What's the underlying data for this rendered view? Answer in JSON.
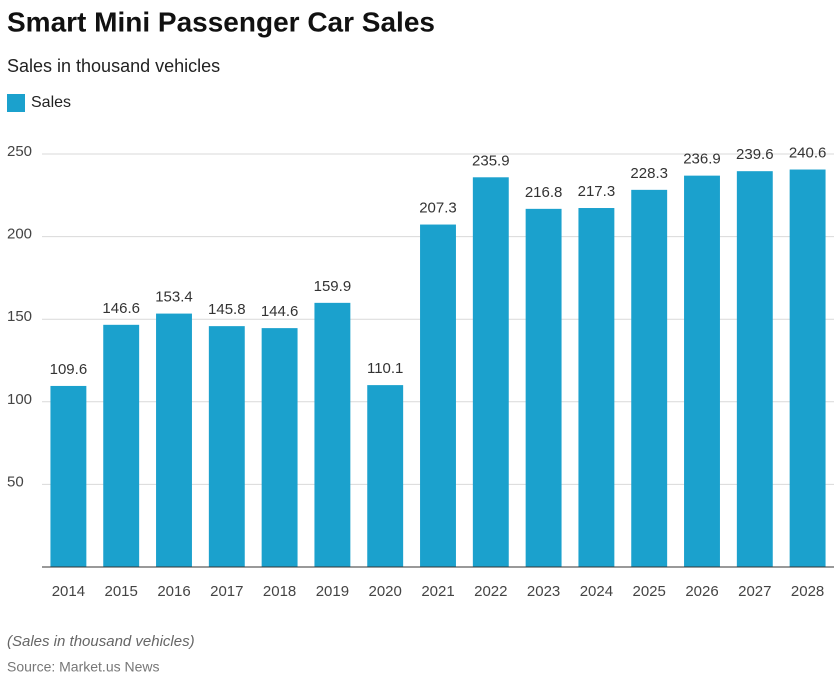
{
  "chart_data": {
    "type": "bar",
    "title": "Smart Mini Passenger Car Sales",
    "subtitle": "Sales in thousand vehicles",
    "categories": [
      "2014",
      "2015",
      "2016",
      "2017",
      "2018",
      "2019",
      "2020",
      "2021",
      "2022",
      "2023",
      "2024",
      "2025",
      "2026",
      "2027",
      "2028"
    ],
    "series": [
      {
        "name": "Sales",
        "color": "#1ba1cd",
        "values": [
          109.6,
          146.6,
          153.4,
          145.8,
          144.6,
          159.9,
          110.1,
          207.3,
          235.9,
          216.8,
          217.3,
          228.3,
          236.9,
          239.6,
          240.6
        ]
      }
    ],
    "ylim": [
      0,
      250
    ],
    "yticks": [
      50,
      100,
      150,
      200,
      250
    ],
    "grid": true,
    "note": "(Sales in thousand vehicles)",
    "source": "Source: Market.us News"
  }
}
